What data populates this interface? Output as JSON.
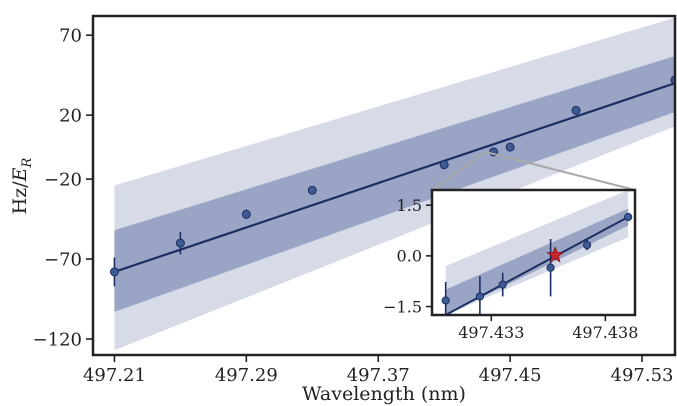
{
  "chart_data": [
    {
      "type": "line",
      "panel": "main",
      "xlabel": "Wavelength (nm)",
      "ylabel": "Hz/",
      "ylabel_symbol": "E",
      "ylabel_subscript": "R",
      "xlim": [
        497.197,
        497.55
      ],
      "ylim": [
        -130,
        82
      ],
      "xticks": [
        497.21,
        497.29,
        497.37,
        497.45,
        497.53
      ],
      "xtick_labels": [
        "497.21",
        "497.29",
        "497.37",
        "497.45",
        "497.53"
      ],
      "yticks": [
        70,
        20,
        -20,
        -70,
        -120
      ],
      "ytick_labels": [
        "70",
        "20",
        "−20",
        "−70",
        "−120"
      ],
      "fit": {
        "x": [
          497.21,
          497.55
        ],
        "y": [
          -78,
          40
        ]
      },
      "outer_band": {
        "x": [
          497.21,
          497.55
        ],
        "lower": [
          -127,
          13
        ],
        "upper": [
          -24,
          81
        ]
      },
      "inner_band": {
        "x": [
          497.21,
          497.55
        ],
        "lower": [
          -103,
          22
        ],
        "upper": [
          -52,
          57
        ]
      },
      "points": [
        {
          "x": 497.21,
          "y": -78,
          "err": 9
        },
        {
          "x": 497.25,
          "y": -60,
          "err": 7
        },
        {
          "x": 497.29,
          "y": -42,
          "err": 3
        },
        {
          "x": 497.33,
          "y": -27,
          "err": 2
        },
        {
          "x": 497.41,
          "y": -11,
          "err": 1.5
        },
        {
          "x": 497.44,
          "y": -3,
          "err": 1
        },
        {
          "x": 497.45,
          "y": 0,
          "err": 1
        },
        {
          "x": 497.49,
          "y": 23,
          "err": 1
        },
        {
          "x": 497.55,
          "y": 42,
          "err": 1
        }
      ]
    },
    {
      "type": "line",
      "panel": "inset",
      "xlim": [
        497.4304,
        497.4393
      ],
      "ylim": [
        -1.75,
        1.95
      ],
      "xticks": [
        497.433,
        497.438
      ],
      "xtick_labels": [
        "497.433",
        "497.438"
      ],
      "yticks": [
        1.5,
        0.0,
        -1.5
      ],
      "ytick_labels": [
        "1.5",
        "0.0",
        "−1.5"
      ],
      "fit": {
        "x": [
          497.431,
          497.439
        ],
        "y": [
          -1.75,
          1.15
        ]
      },
      "outer_band": {
        "x": [
          497.431,
          497.439
        ],
        "lower": [
          -1.75,
          0.55
        ],
        "upper": [
          -0.3,
          1.95
        ]
      },
      "inner_band": {
        "x": [
          497.431,
          497.439
        ],
        "lower": [
          -1.75,
          0.9
        ],
        "upper": [
          -1.0,
          1.4
        ]
      },
      "points": [
        {
          "x": 497.431,
          "y": -1.32,
          "err": 0.55
        },
        {
          "x": 497.4325,
          "y": -1.2,
          "err": 0.6
        },
        {
          "x": 497.4335,
          "y": -0.85,
          "err": 0.35
        },
        {
          "x": 497.4356,
          "y": -0.35,
          "err": 0.85
        },
        {
          "x": 497.4372,
          "y": 0.32,
          "err": 0.15
        },
        {
          "x": 497.439,
          "y": 1.15,
          "err": 0.05
        }
      ],
      "marker": {
        "x": 497.4358,
        "y": 0.02,
        "symbol": "star"
      }
    }
  ],
  "colors": {
    "line": "#1c2f63",
    "point": "#3e5a93",
    "outer_band": "#d7dbe7",
    "inner_band": "#9aa5c5",
    "marker": "#c8262f",
    "zoom_line": "#a9a9a9",
    "frame": "#222222"
  }
}
